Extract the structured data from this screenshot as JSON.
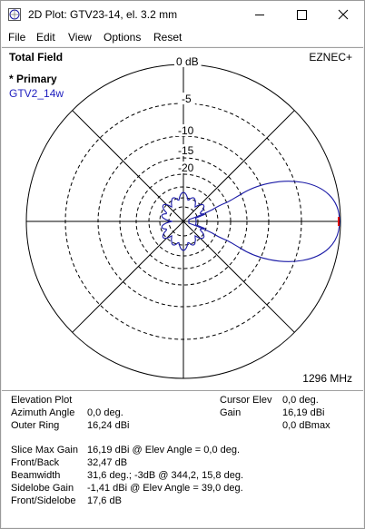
{
  "window": {
    "title": "2D Plot: GTV23-14, el. 3.2 mm",
    "icon": "plot-app-icon",
    "controls": [
      "minimize-icon",
      "maximize-icon",
      "close-icon"
    ]
  },
  "menu": [
    "File",
    "Edit",
    "View",
    "Options",
    "Reset"
  ],
  "plot": {
    "title": "Total Field",
    "program": "EZNEC+",
    "legend_marker": "* Primary",
    "file_label": "GTV2_14w",
    "frequency": "1296 MHz",
    "ring_labels": [
      "0 dB",
      "-5",
      "-10",
      "-15",
      "-20"
    ],
    "colors": {
      "trace": "#1a1aa6",
      "file_label": "#1f1fbf",
      "cursor": "#e00000"
    }
  },
  "info_left": [
    {
      "label": "Elevation Plot",
      "value": ""
    },
    {
      "label": "Azimuth Angle",
      "value": "0,0 deg."
    },
    {
      "label": "Outer Ring",
      "value": "16,24 dBi"
    }
  ],
  "info_right": [
    {
      "label": "Cursor Elev",
      "value": "0,0 deg."
    },
    {
      "label": "Gain",
      "value": "16,19 dBi"
    },
    {
      "label": "",
      "value": "0,0 dBmax"
    }
  ],
  "stats": [
    {
      "label": "Slice Max Gain",
      "value": "16,19 dBi @ Elev Angle = 0,0 deg."
    },
    {
      "label": "Front/Back",
      "value": "32,47 dB"
    },
    {
      "label": "Beamwidth",
      "value": "31,6 deg.; -3dB @ 344,2, 15,8 deg."
    },
    {
      "label": "Sidelobe Gain",
      "value": "-1,41 dBi @ Elev Angle = 39,0 deg."
    },
    {
      "label": "Front/Sidelobe",
      "value": "17,6 dB"
    }
  ]
}
